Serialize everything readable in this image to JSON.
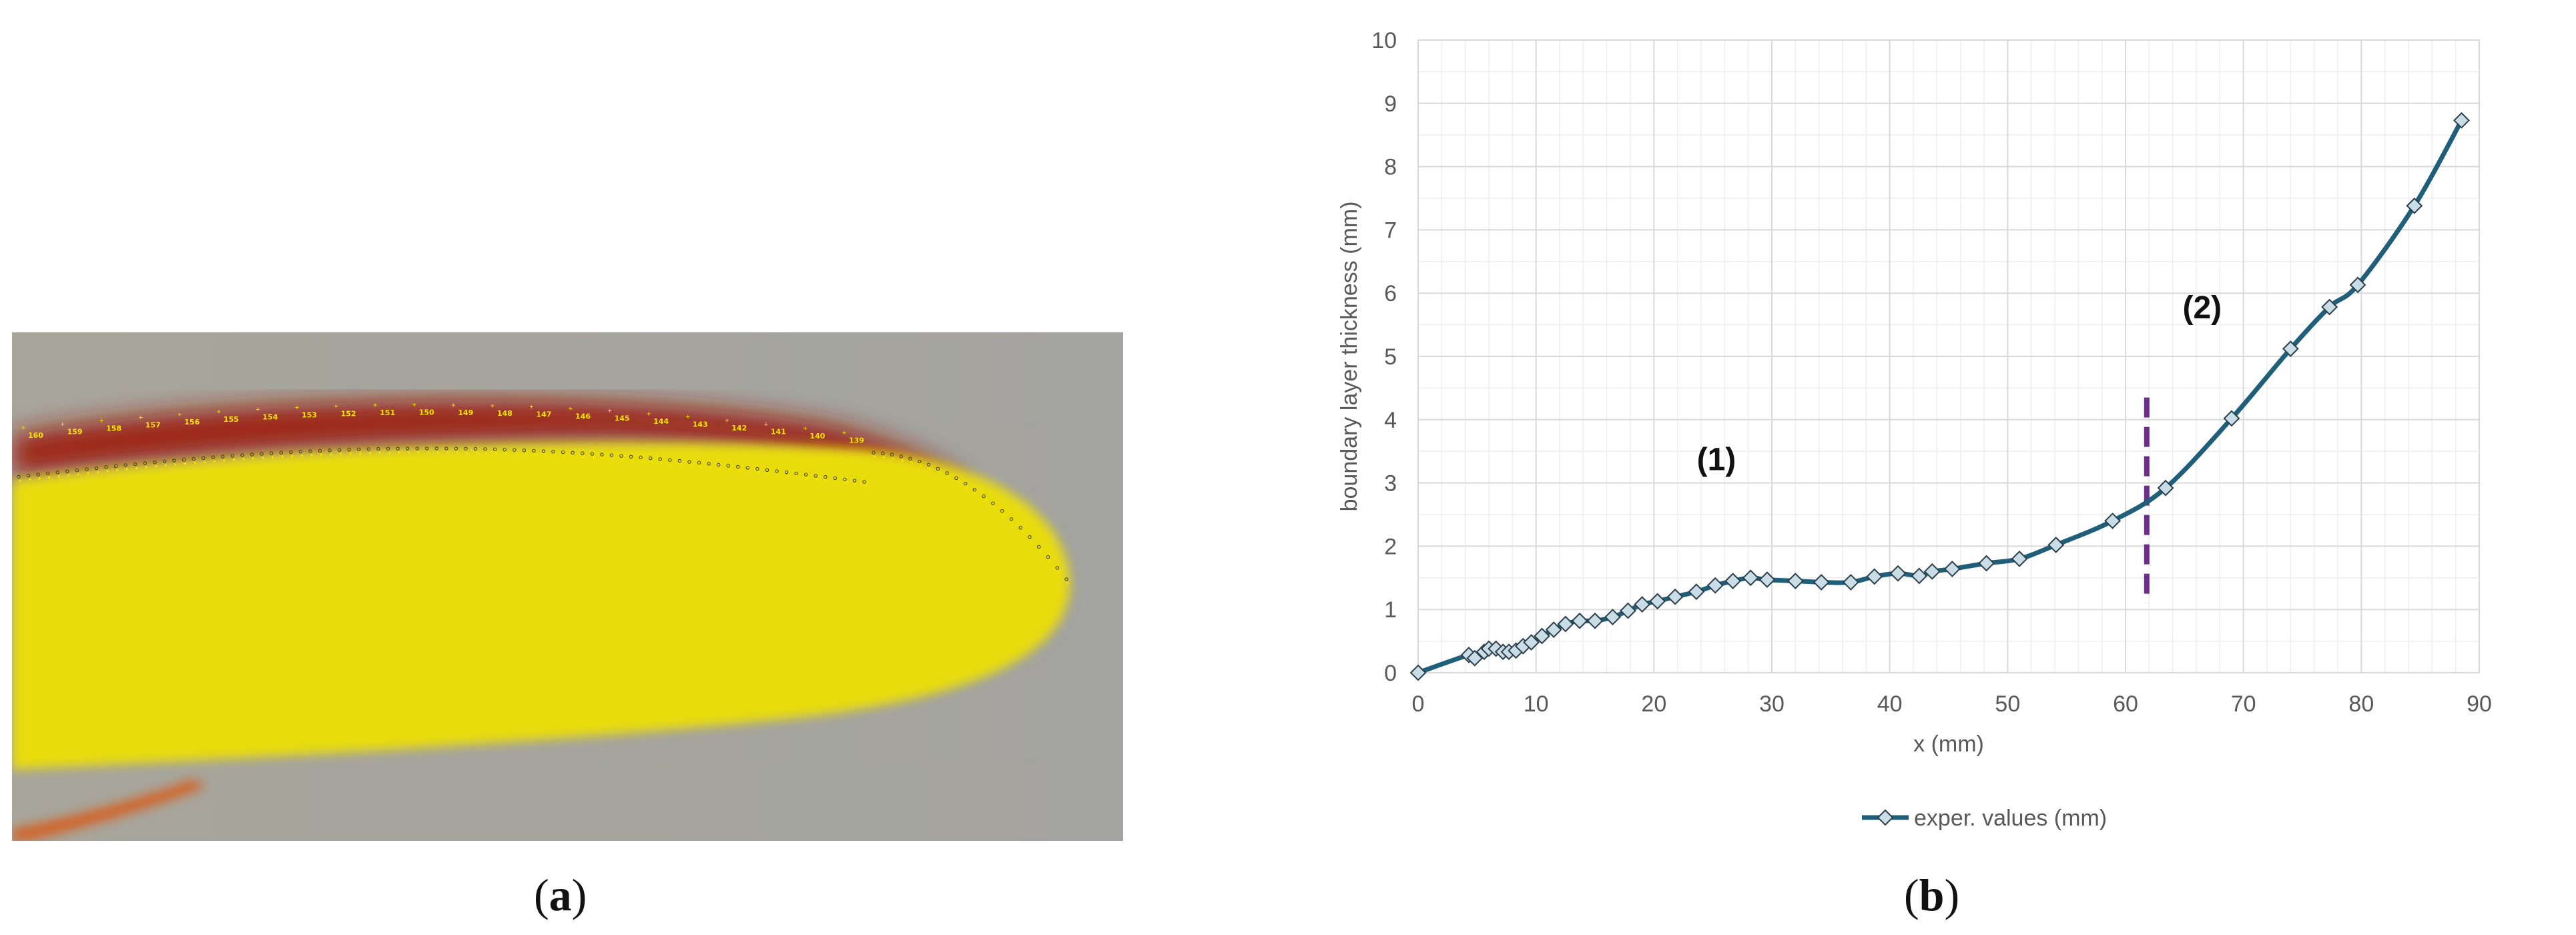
{
  "captions": {
    "a": "a",
    "b": "b"
  },
  "photo": {
    "marker_labels": [
      "160",
      "159",
      "158",
      "157",
      "156",
      "155",
      "154",
      "153",
      "152",
      "151",
      "150",
      "149",
      "148",
      "147",
      "146",
      "145",
      "144",
      "143",
      "142",
      "141",
      "140",
      "139"
    ],
    "colors": {
      "background": "#a7a49b",
      "body": "#e8dc10",
      "boundary_layer": "#9c1a08",
      "markers": "#f4e400"
    }
  },
  "chart_data": {
    "type": "line",
    "title": "",
    "xlabel": "x (mm)",
    "ylabel": "boundary layer thickness (mm)",
    "xlim": [
      0,
      90
    ],
    "ylim": [
      0,
      10
    ],
    "x_ticks": [
      0,
      10,
      20,
      30,
      40,
      50,
      60,
      70,
      80,
      90
    ],
    "y_ticks": [
      0,
      1,
      2,
      3,
      4,
      5,
      6,
      7,
      8,
      9,
      10
    ],
    "grid": true,
    "legend_position": "bottom",
    "series": [
      {
        "name": "exper. values (mm)",
        "color": "#1f5f7a",
        "marker": "diamond",
        "x": [
          0,
          4.3,
          4.8,
          5.6,
          6.0,
          6.6,
          7.2,
          7.7,
          8.3,
          8.9,
          9.6,
          10.5,
          11.5,
          12.5,
          13.7,
          15.0,
          16.5,
          17.8,
          19.0,
          20.3,
          21.8,
          23.6,
          25.2,
          26.7,
          28.2,
          29.6,
          32.0,
          34.2,
          36.7,
          38.7,
          40.7,
          42.5,
          43.6,
          45.3,
          48.2,
          51.0,
          54.1,
          58.9,
          63.4,
          69.0,
          74.0,
          77.3,
          79.7,
          84.5,
          88.5
        ],
        "y": [
          0,
          0.28,
          0.23,
          0.33,
          0.38,
          0.38,
          0.33,
          0.33,
          0.35,
          0.42,
          0.48,
          0.58,
          0.68,
          0.77,
          0.82,
          0.82,
          0.88,
          0.98,
          1.08,
          1.13,
          1.2,
          1.28,
          1.38,
          1.45,
          1.5,
          1.47,
          1.45,
          1.43,
          1.43,
          1.52,
          1.57,
          1.53,
          1.6,
          1.64,
          1.73,
          1.8,
          2.02,
          2.4,
          2.92,
          4.02,
          5.12,
          5.78,
          6.13,
          7.38,
          8.73
        ]
      }
    ],
    "annotations": [
      {
        "text": "(1)",
        "x": 25.3,
        "y": 3.2
      },
      {
        "text": "(2)",
        "x": 66.5,
        "y": 5.6
      }
    ],
    "divider": {
      "x": 61.8,
      "y_from": 1.1,
      "y_to": 4.35,
      "color": "#6b2e8f",
      "style": "dashed"
    }
  }
}
